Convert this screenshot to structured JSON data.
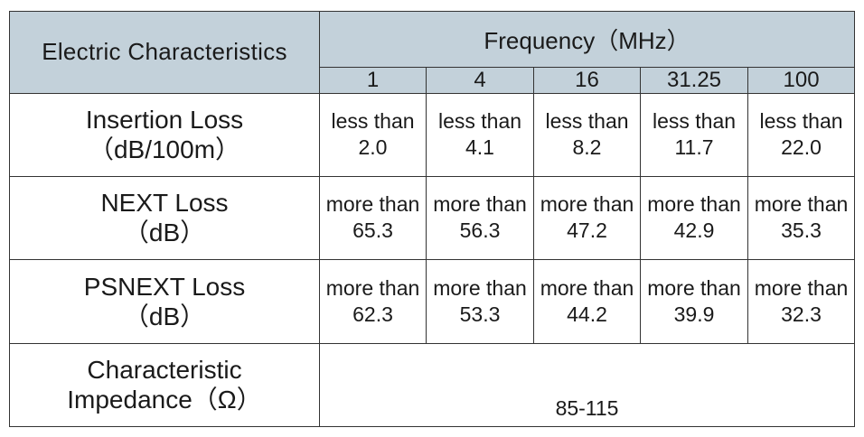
{
  "table": {
    "header": {
      "label": "Electric Characteristics",
      "frequency_label": "Frequency（MHz）",
      "frequencies": [
        "1",
        "4",
        "16",
        "31.25",
        "100"
      ]
    },
    "rows": [
      {
        "name_line1": "Insertion Loss",
        "name_line2": "（dB/100m）",
        "cells": [
          {
            "qualifier": "less than",
            "value": "2.0"
          },
          {
            "qualifier": "less than",
            "value": "4.1"
          },
          {
            "qualifier": "less than",
            "value": "8.2"
          },
          {
            "qualifier": "less than",
            "value": "11.7"
          },
          {
            "qualifier": "less than",
            "value": "22.0"
          }
        ]
      },
      {
        "name_line1": "NEXT Loss",
        "name_line2": "（dB）",
        "cells": [
          {
            "qualifier": "more than",
            "value": "65.3"
          },
          {
            "qualifier": "more than",
            "value": "56.3"
          },
          {
            "qualifier": "more than",
            "value": "47.2"
          },
          {
            "qualifier": "more than",
            "value": "42.9"
          },
          {
            "qualifier": "more than",
            "value": "35.3"
          }
        ]
      },
      {
        "name_line1": "PSNEXT Loss",
        "name_line2": "（dB）",
        "cells": [
          {
            "qualifier": "more than",
            "value": "62.3"
          },
          {
            "qualifier": "more than",
            "value": "53.3"
          },
          {
            "qualifier": "more than",
            "value": "44.2"
          },
          {
            "qualifier": "more than",
            "value": "39.9"
          },
          {
            "qualifier": "more than",
            "value": "32.3"
          }
        ]
      }
    ],
    "impedance": {
      "name_line1": "Characteristic",
      "name_line2": "Impedance（Ω）",
      "value": "85-115"
    },
    "colors": {
      "header_background": "#c3d1da",
      "border": "#333333",
      "text": "#1a1a1a"
    }
  }
}
